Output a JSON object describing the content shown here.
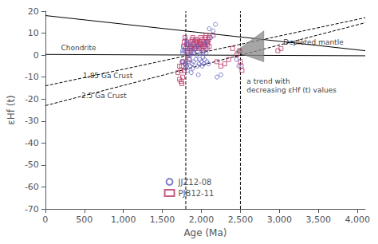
{
  "chart_data": {
    "type": "scatter",
    "xlabel": "Age (Ma)",
    "ylabel": "εHf (t)",
    "xlim": [
      0,
      4100
    ],
    "ylim": [
      -70,
      20
    ],
    "xticks": [
      0,
      500,
      1000,
      1500,
      2000,
      2500,
      3000,
      3500,
      4000
    ],
    "yticks": [
      20,
      10,
      0,
      -10,
      -20,
      -30,
      -40,
      -50,
      -60,
      -70
    ],
    "grid": false,
    "legend": "lower center",
    "series": [
      {
        "name": "JJZ12-08",
        "type": "scatter",
        "marker": "circle",
        "color": "#6060bb",
        "x": [
          1760,
          1770,
          1780,
          1790,
          1800,
          1810,
          1820,
          1830,
          1840,
          1850,
          1860,
          1870,
          1880,
          1890,
          1900,
          1910,
          1920,
          1930,
          1940,
          1950,
          1960,
          1970,
          1980,
          1990,
          2000,
          2010,
          2020,
          2030,
          2040,
          2050,
          2060,
          2070,
          2080,
          2090,
          2100,
          2120,
          2150,
          2180,
          2200,
          2250,
          1750,
          1760,
          1780,
          1820,
          1860,
          1900,
          1940,
          1980,
          2020,
          2060,
          1800,
          1820,
          1840,
          1860,
          1880,
          2450,
          2480
        ],
        "values": [
          1,
          -3,
          2,
          -4,
          -6,
          -5,
          -7,
          -3,
          0,
          -2,
          -5,
          -8,
          -4,
          -6,
          -3,
          1,
          4,
          -2,
          0,
          -5,
          -9,
          -4,
          -2,
          1,
          -3,
          -5,
          -1,
          -4,
          -2,
          5,
          1,
          -3,
          3,
          -4,
          12,
          8,
          11,
          14,
          -10,
          -9,
          -3,
          2,
          4,
          6,
          0,
          2,
          4,
          3,
          1,
          6,
          7,
          5,
          3,
          2,
          5,
          -2,
          -5
        ]
      },
      {
        "name": "PJB12-11",
        "type": "scatter",
        "marker": "square",
        "color": "#bb3366",
        "x": [
          1720,
          1740,
          1750,
          1760,
          1770,
          1780,
          1790,
          1800,
          1810,
          1820,
          1830,
          1840,
          1850,
          1860,
          1870,
          1880,
          1890,
          1900,
          1910,
          1920,
          1930,
          1940,
          1950,
          1960,
          1970,
          1980,
          1990,
          2000,
          2010,
          2020,
          2030,
          2040,
          2050,
          2060,
          2070,
          2080,
          2090,
          2100,
          2150,
          2200,
          2250,
          2300,
          2350,
          2400,
          2450,
          2490,
          2500,
          2510,
          2520,
          2980,
          3020,
          1750,
          1760,
          1780,
          1800,
          1820,
          1840,
          1860,
          1880,
          1900,
          1920,
          1940,
          1960,
          1980,
          2000,
          2020,
          2040,
          2060,
          2080,
          2100,
          1700,
          1720,
          1740
        ],
        "values": [
          -11,
          -7,
          -5,
          -3,
          4,
          6,
          8,
          3,
          5,
          0,
          1,
          -2,
          3,
          6,
          4,
          7,
          8,
          5,
          3,
          7,
          6,
          4,
          7,
          5,
          3,
          6,
          8,
          5,
          7,
          4,
          6,
          4,
          8,
          9,
          6,
          5,
          7,
          8,
          9,
          -3,
          -5,
          -4,
          -2,
          3,
          0,
          2,
          -3,
          -5,
          -7,
          2,
          3,
          -13,
          -10,
          -7,
          -4,
          2,
          5,
          4,
          3,
          1,
          3,
          6,
          4,
          5,
          3,
          2,
          5,
          3,
          6,
          4,
          -8,
          -5,
          -12
        ]
      },
      {
        "type": "line",
        "line_style": "solid",
        "color": "#000000",
        "x": [
          0,
          4100
        ],
        "values": [
          18,
          2
        ]
      },
      {
        "type": "line",
        "line_style": "solid",
        "color": "#000000",
        "x": [
          0,
          4100
        ],
        "values": [
          0.3,
          -0.3
        ]
      },
      {
        "type": "line",
        "line_style": "dashed",
        "color": "#000000",
        "x": [
          0,
          4100
        ],
        "values": [
          -14,
          17.027027027027028
        ]
      },
      {
        "type": "line",
        "line_style": "dashed",
        "color": "#000000",
        "x": [
          0,
          4100
        ],
        "values": [
          -23,
          14.72
        ]
      },
      {
        "type": "vline",
        "line_style": "dashed",
        "color": "#000000",
        "x": [
          1800
        ]
      },
      {
        "type": "vline",
        "line_style": "dashed",
        "color": "#000000",
        "x": [
          2500
        ]
      },
      {
        "type": "polygon",
        "color": "#888888",
        "x": [
          2430,
          2800,
          2800
        ],
        "values": [
          1.5,
          11,
          -3
        ]
      }
    ],
    "annotations": [
      {
        "text": "Chondrite",
        "x": 200,
        "y": 1.2
      },
      {
        "text": "Depleted mantle",
        "x": 3050,
        "y": 4.0
      },
      {
        "text": "1.85 Ga Crust",
        "x": 800,
        "y": -9.5
      },
      {
        "text": "2.5 Ga Crust",
        "x": 750,
        "y": -18.5
      },
      {
        "text": "a trend with\ndecreasing εHf (t) values",
        "x": 2580,
        "y": -10
      }
    ]
  }
}
